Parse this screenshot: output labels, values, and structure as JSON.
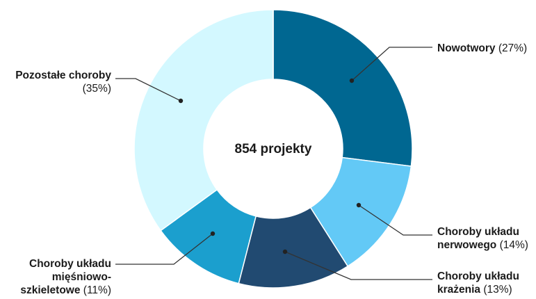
{
  "chart_data": {
    "type": "pie",
    "center_text": "854 projekty",
    "slices": [
      {
        "name_lines": [
          "Nowotwory"
        ],
        "pct_label": "(27%)",
        "value": 27,
        "color": "#006791"
      },
      {
        "name_lines": [
          "Choroby układu",
          "nerwowego"
        ],
        "pct_label": "(14%)",
        "value": 14,
        "color": "#63c9f6"
      },
      {
        "name_lines": [
          "Choroby układu",
          "krażenia"
        ],
        "pct_label": "(13%)",
        "value": 13,
        "color": "#214a71"
      },
      {
        "name_lines": [
          "Choroby układu",
          "mięśniowo-",
          "szkieletowe"
        ],
        "pct_label": "(11%)",
        "value": 11,
        "color": "#1b9fce"
      },
      {
        "name_lines": [
          "Pozostałe choroby"
        ],
        "pct_label": "(35%)",
        "value": 35,
        "color": "#d3f8ff"
      }
    ]
  }
}
